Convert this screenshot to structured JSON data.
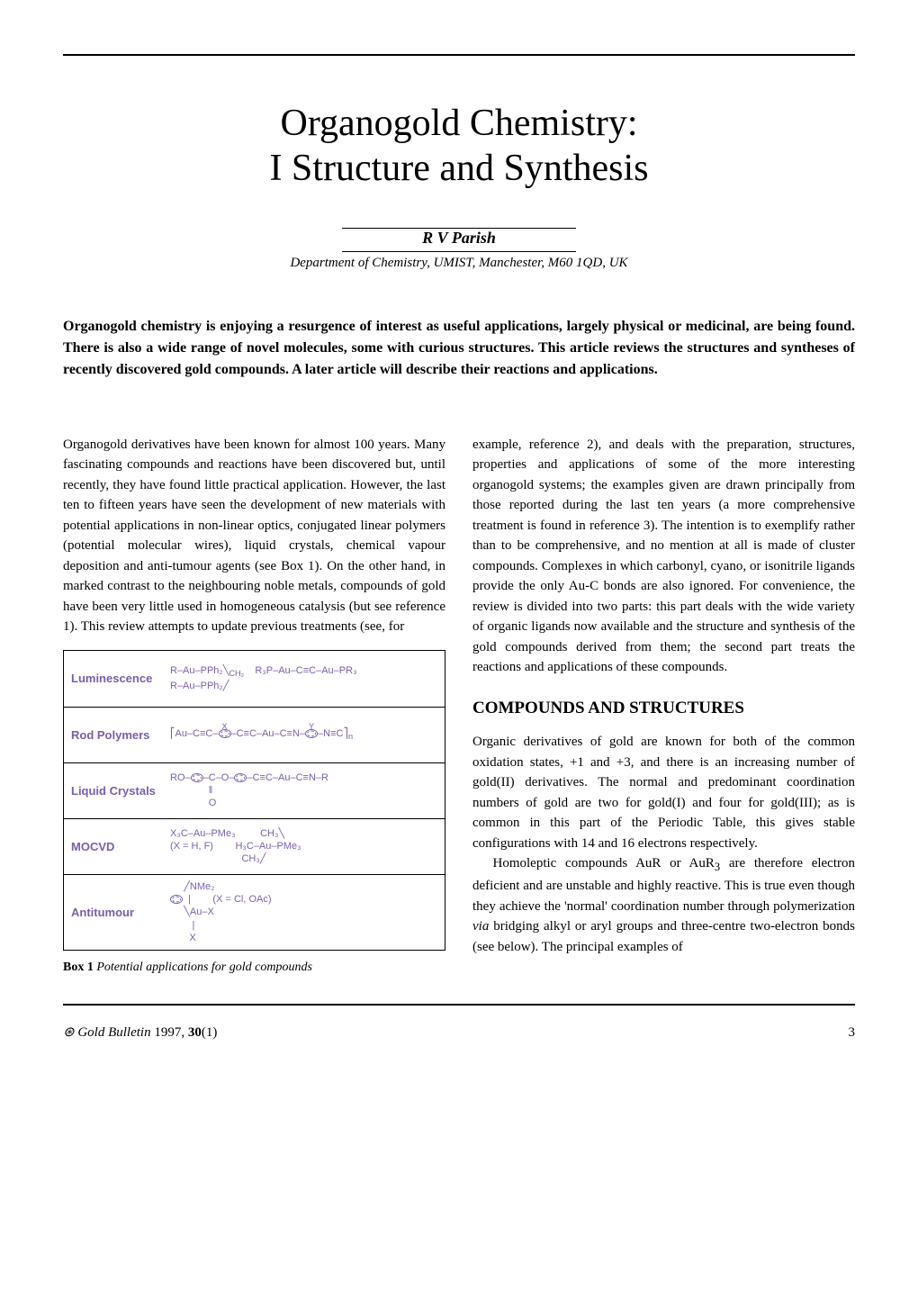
{
  "title_line1": "Organogold Chemistry:",
  "title_line2": "I Structure and Synthesis",
  "author": "R V Parish",
  "affiliation": "Department of Chemistry, UMIST, Manchester, M60 1QD, UK",
  "abstract": "Organogold chemistry is enjoying a resurgence of interest as useful applications, largely physical or medicinal, are being found. There is also a wide range of novel molecules, some with curious structures. This article reviews the structures and syntheses of recently discovered gold compounds. A later article will describe their reactions and applications.",
  "col1_p1": "Organogold derivatives have been known for almost 100 years. Many fascinating compounds and reactions have been discovered but, until recently, they have found little practical application. However, the last ten to fifteen years have seen the development of new materials with potential applications in non-linear optics, conjugated linear polymers (potential molecular wires), liquid crystals, chemical vapour deposition and anti-tumour agents (see Box 1). On the other hand, in marked contrast to the neighbouring noble metals, compounds of gold have been very little used in homogeneous catalysis (but see reference 1). This review attempts to update previous treatments (see, for",
  "col2_p1": "example, reference 2), and deals with the preparation, structures, properties and applications of some of the more interesting organogold systems; the examples given are drawn principally from those reported during the last ten years (a more comprehensive treatment is found in reference 3). The intention is to exemplify rather than to be comprehensive, and no mention at all is made of cluster compounds. Complexes in which carbonyl, cyano, or isonitrile ligands provide the only Au-C bonds are also ignored. For convenience, the review is divided into two parts: this part deals with the wide variety of organic ligands now available and the structure and synthesis of the gold compounds derived from them; the second part treats the reactions and applications of these compounds.",
  "section_heading": "COMPOUNDS AND STRUCTURES",
  "col2_p2": "Organic derivatives of gold are known for both of the common oxidation states, +1 and +3, and there is an increasing number of gold(II) derivatives. The normal and predominant coordination numbers of gold are two for gold(I) and four for gold(III); as is common in this part of the Periodic Table, this gives stable configurations with 14 and 16 electrons respectively.",
  "col2_p3_a": "Homoleptic compounds AuR or AuR",
  "col2_p3_b": " are therefore electron deficient and are unstable and highly reactive. This is true even though they achieve the 'normal' coordination number through polymerization ",
  "col2_p3_c": " bridging alkyl or aryl groups and three-centre two-electron bonds (see below). The principal examples of",
  "via": "via",
  "sub3": "3",
  "box": {
    "rows": [
      {
        "label": "Luminescence",
        "line1": "R–Au–PPh₂",
        "line2": "R–Au–PPh₂",
        "mid": "CH₂",
        "right": "R₃P–Au–C≡C–Au–PR₃"
      },
      {
        "label": "Rod Polymers",
        "content": "Au–C≡C–⟨ring⟩–C≡C–Au–C≡N–⟨ring⟩–N≡C",
        "sub": "n",
        "topX": "X",
        "topY": "Y"
      },
      {
        "label": "Liquid Crystals",
        "content": "RO–⟨ring⟩–C(=O)–O–⟨ring⟩–C≡C–Au–C≡N–R"
      },
      {
        "label": "MOCVD",
        "left": "X₃C–Au–PMe₃",
        "leftnote": "(X = H, F)",
        "right_top": "CH₃",
        "right_mid": "H₃C–Au–PMe₃",
        "right_bot": "CH₃"
      },
      {
        "label": "Antitumour",
        "structure": "⟨ring⟩–Au–X",
        "top": "NMe₂",
        "bottom": "X",
        "note": "(X = Cl, OAc)"
      }
    ],
    "caption_bold": "Box 1",
    "caption_italic": "Potential applications for gold compounds"
  },
  "footer": {
    "journal": "Gold Bulletin",
    "year": "1997,",
    "volume": "30",
    "issue": "(1)",
    "page": "3"
  },
  "colors": {
    "text": "#000000",
    "box_text": "#7a5fa8",
    "bg": "#ffffff"
  }
}
